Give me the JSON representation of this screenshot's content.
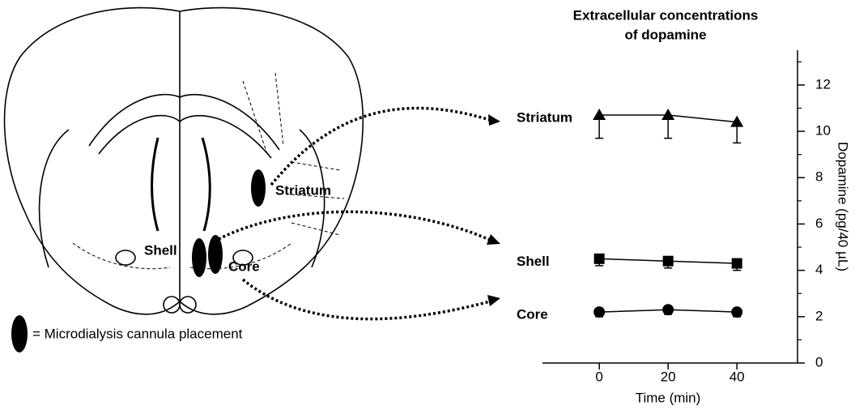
{
  "chart_data": {
    "type": "line",
    "title": [
      "Extracellular concentrations",
      "of dopamine"
    ],
    "x_label": "Time (min)",
    "y_label": "Dopamine (pg/40 µL)",
    "x": [
      0,
      20,
      40
    ],
    "xlim": [
      -16.5,
      57.6
    ],
    "xticks": [
      0,
      20,
      40
    ],
    "ylim": [
      0,
      13.5
    ],
    "yticks": [
      0,
      2,
      4,
      6,
      8,
      10,
      12
    ],
    "yticks_minor": [
      1,
      3,
      5,
      7,
      9,
      11,
      13
    ],
    "series": [
      {
        "name": "Striatum",
        "marker": "triangle",
        "color": "#000000",
        "values": [
          10.7,
          10.7,
          10.4
        ],
        "errors": [
          1.0,
          1.0,
          0.9
        ]
      },
      {
        "name": "Shell",
        "marker": "square",
        "color": "#000000",
        "values": [
          4.5,
          4.4,
          4.3
        ],
        "errors": [
          0.3,
          0.3,
          0.3
        ]
      },
      {
        "name": "Core",
        "marker": "circle",
        "color": "#000000",
        "values": [
          2.2,
          2.3,
          2.2
        ],
        "errors": [
          0.2,
          0.2,
          0.2
        ]
      }
    ]
  },
  "diagram": {
    "labels": [
      "Striatum",
      "Shell",
      "Core"
    ],
    "legend": "= Microdialysis cannula placement"
  }
}
